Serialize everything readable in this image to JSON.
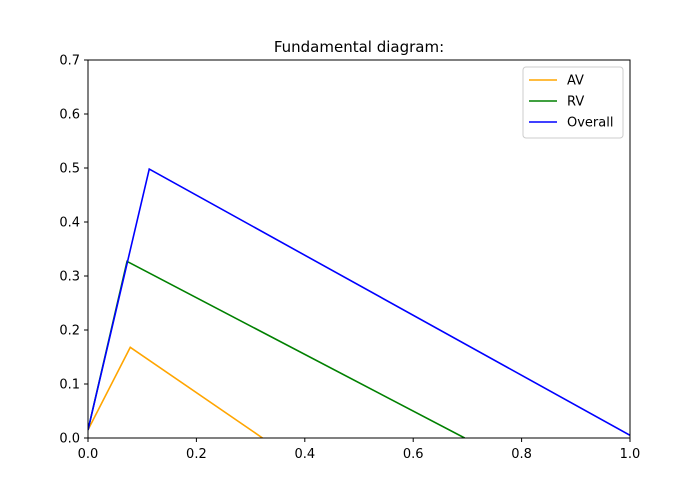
{
  "chart_data": {
    "type": "line",
    "title": "Fundamental diagram:",
    "xlabel": "",
    "ylabel": "",
    "xlim": [
      0,
      1.0
    ],
    "ylim": [
      0,
      0.7
    ],
    "x_ticks": [
      0.0,
      0.2,
      0.4,
      0.6,
      0.8,
      1.0
    ],
    "y_ticks": [
      0.0,
      0.1,
      0.2,
      0.3,
      0.4,
      0.5,
      0.6,
      0.7
    ],
    "x_tick_labels": [
      "0.0",
      "0.2",
      "0.4",
      "0.6",
      "0.8",
      "1.0"
    ],
    "y_tick_labels": [
      "0.0",
      "0.1",
      "0.2",
      "0.3",
      "0.4",
      "0.5",
      "0.6",
      "0.7"
    ],
    "grid": false,
    "legend_position": "top-right",
    "series": [
      {
        "name": "AV",
        "color": "#ffa500",
        "points": [
          [
            0.0,
            0.015
          ],
          [
            0.078,
            0.168
          ],
          [
            0.322,
            0.0
          ]
        ]
      },
      {
        "name": "RV",
        "color": "#008000",
        "points": [
          [
            0.0,
            0.015
          ],
          [
            0.072,
            0.327
          ],
          [
            0.695,
            0.0
          ]
        ]
      },
      {
        "name": "Overall",
        "color": "#0000ff",
        "points": [
          [
            0.0,
            0.015
          ],
          [
            0.113,
            0.498
          ],
          [
            1.0,
            0.005
          ]
        ]
      }
    ]
  }
}
